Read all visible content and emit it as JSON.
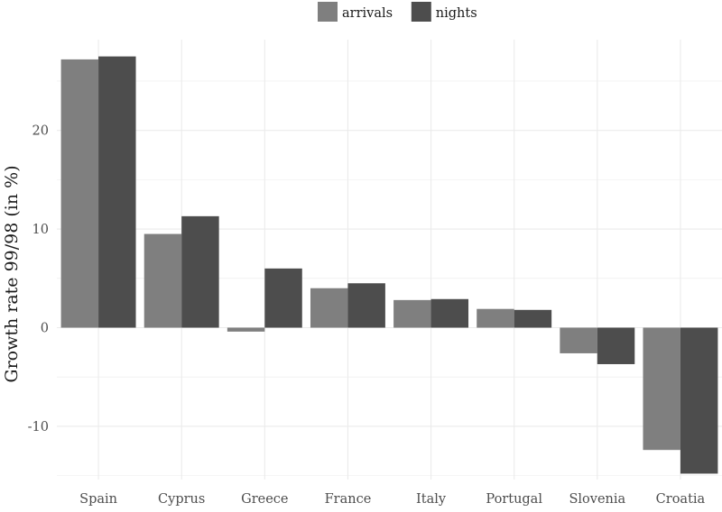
{
  "chart_data": {
    "type": "bar",
    "title": "",
    "xlabel": "",
    "ylabel": "Growth rate 99/98 (in %)",
    "categories": [
      "Spain",
      "Cyprus",
      "Greece",
      "France",
      "Italy",
      "Portugal",
      "Slovenia",
      "Croatia"
    ],
    "series": [
      {
        "name": "arrivals",
        "color": "#7f7f7f",
        "values": [
          27.2,
          9.5,
          -0.4,
          4.0,
          2.8,
          1.9,
          -2.6,
          -12.4
        ]
      },
      {
        "name": "nights",
        "color": "#4d4d4d",
        "values": [
          27.5,
          11.3,
          6.0,
          4.5,
          2.9,
          1.8,
          -3.7,
          -14.8
        ]
      }
    ],
    "ylim": [
      -15.4,
      29.2
    ],
    "yticks": [
      -10,
      0,
      10,
      20
    ],
    "ytick_labels": [
      "-10",
      "0",
      "10",
      "20"
    ],
    "grid": true,
    "legend_position": "top"
  }
}
